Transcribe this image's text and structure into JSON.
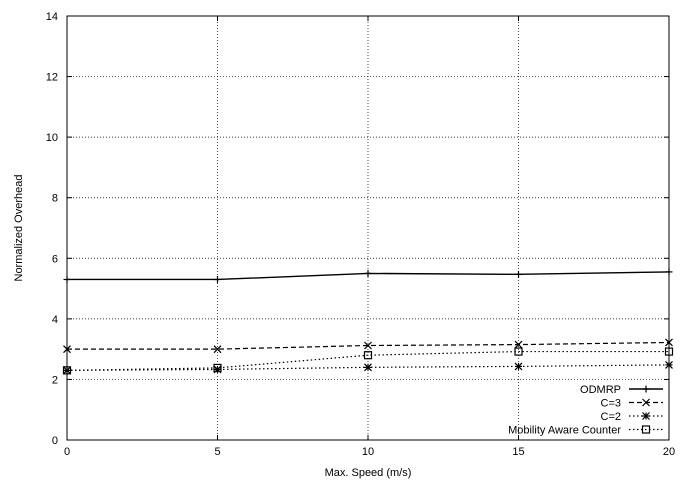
{
  "chart_data": {
    "type": "line",
    "title": "",
    "xlabel": "Max. Speed (m/s)",
    "ylabel": "Normalized Overhead",
    "xlim": [
      0,
      20
    ],
    "ylim": [
      0,
      14
    ],
    "xticks": [
      0,
      5,
      10,
      15,
      20
    ],
    "yticks": [
      0,
      2,
      4,
      6,
      8,
      10,
      12,
      14
    ],
    "xtick_labels": [
      "0",
      "5",
      "10",
      "15",
      "20"
    ],
    "ytick_labels": [
      "0",
      "2",
      "4",
      "6",
      "8",
      "10",
      "12",
      "14"
    ],
    "grid": true,
    "legend_position": "bottom-right",
    "x": [
      0,
      5,
      10,
      15,
      20
    ],
    "series": [
      {
        "name": "ODMRP",
        "values": [
          5.3,
          5.3,
          5.5,
          5.47,
          5.55
        ],
        "dash": "solid",
        "marker": "plus"
      },
      {
        "name": "C=3",
        "values": [
          3.0,
          3.0,
          3.12,
          3.15,
          3.22
        ],
        "dash": "dashed",
        "marker": "x"
      },
      {
        "name": "C=2",
        "values": [
          2.3,
          2.33,
          2.4,
          2.43,
          2.48
        ],
        "dash": "dotted",
        "marker": "star"
      },
      {
        "name": "Mobility Aware Counter",
        "values": [
          2.3,
          2.38,
          2.8,
          2.92,
          2.92
        ],
        "dash": "dotted",
        "marker": "square"
      }
    ]
  }
}
